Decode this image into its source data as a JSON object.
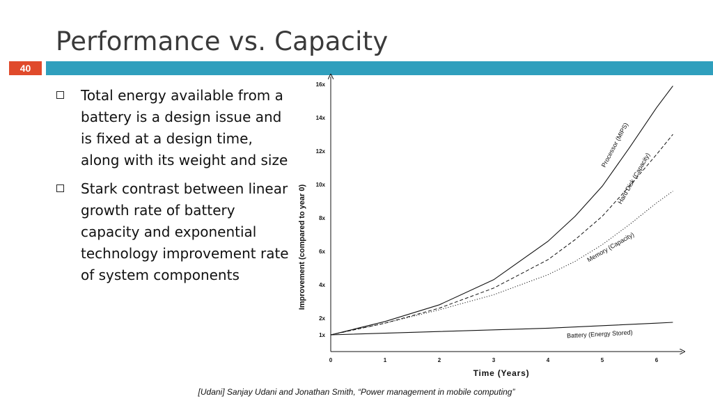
{
  "slide": {
    "title": "Performance vs. Capacity",
    "number": "40",
    "accent_color": "#2f9fbd",
    "number_color": "#e04a2b"
  },
  "bullets": [
    "Total energy available from a battery is a design issue and is fixed at a design time, along with its weight and size",
    "Stark contrast between linear growth rate of battery capacity and exponential technology improvement rate of system components"
  ],
  "citation": "[Udani] Sanjay Udani and Jonathan Smith, “Power management in mobile computing”",
  "chart_data": {
    "type": "line",
    "xlabel": "Time (Years)",
    "ylabel": "Improvement (compared to year 0)",
    "xlim": [
      0,
      6.3
    ],
    "ylim": [
      0,
      16
    ],
    "x_ticks": [
      0,
      1,
      2,
      3,
      4,
      5,
      6
    ],
    "y_ticks": [
      {
        "value": 1,
        "label": "1x"
      },
      {
        "value": 2,
        "label": "2x"
      },
      {
        "value": 4,
        "label": "4x"
      },
      {
        "value": 6,
        "label": "6x"
      },
      {
        "value": 8,
        "label": "8x"
      },
      {
        "value": 10,
        "label": "10x"
      },
      {
        "value": 12,
        "label": "12x"
      },
      {
        "value": 14,
        "label": "14x"
      },
      {
        "value": 16,
        "label": "16x"
      }
    ],
    "grid": false,
    "series": [
      {
        "name": "Processor (MIPS)",
        "style": "solid",
        "x": [
          0,
          1,
          2,
          3,
          4,
          4.5,
          5,
          5.5,
          6,
          6.3
        ],
        "y": [
          1,
          1.8,
          2.8,
          4.3,
          6.6,
          8.1,
          9.9,
          12.2,
          14.6,
          15.9
        ]
      },
      {
        "name": "Hard Disk (Capacity)",
        "style": "dashed",
        "x": [
          0,
          1,
          2,
          3,
          4,
          4.5,
          5,
          5.5,
          6,
          6.3
        ],
        "y": [
          1,
          1.7,
          2.6,
          3.8,
          5.5,
          6.7,
          8.1,
          9.9,
          11.8,
          13.0
        ]
      },
      {
        "name": "Memory (Capacity)",
        "style": "dotted",
        "x": [
          0,
          1,
          2,
          3,
          4,
          4.5,
          5,
          5.5,
          6,
          6.3
        ],
        "y": [
          1,
          1.7,
          2.5,
          3.4,
          4.6,
          5.4,
          6.4,
          7.6,
          8.9,
          9.6
        ]
      },
      {
        "name": "Battery (Energy Stored)",
        "style": "solid",
        "x": [
          0,
          1,
          2,
          3,
          4,
          5,
          6,
          6.3
        ],
        "y": [
          1,
          1.1,
          1.2,
          1.3,
          1.4,
          1.55,
          1.7,
          1.75
        ]
      }
    ]
  }
}
